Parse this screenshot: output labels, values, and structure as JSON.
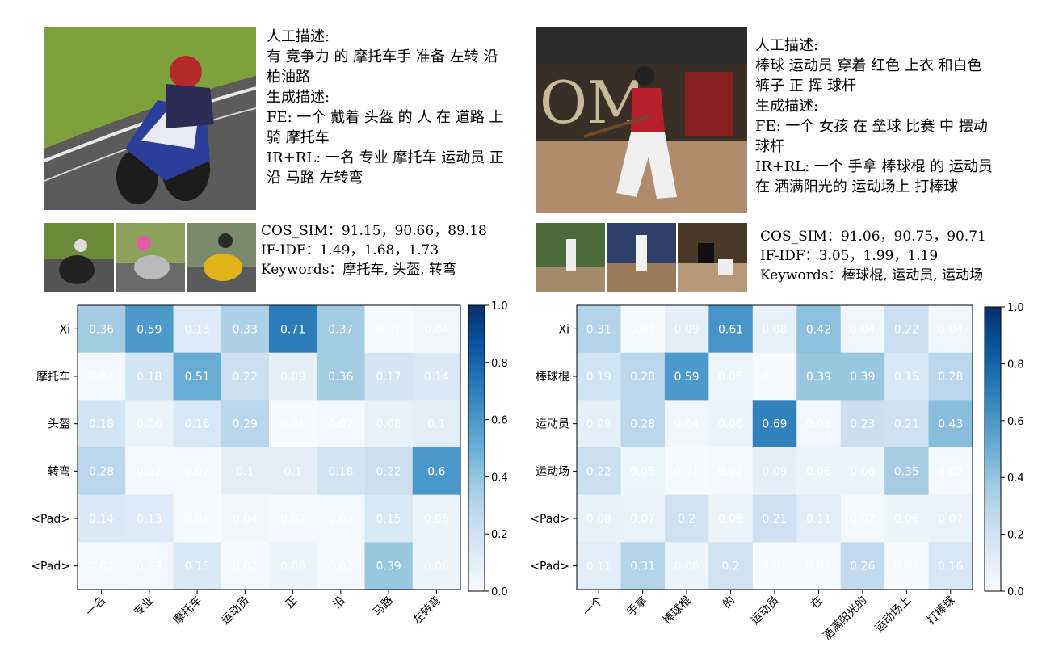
{
  "panels": [
    {
      "manual_label": "人工描述:",
      "manual_lines": [
        "有 竞争力 的 摩托车手 准备 左转 沿",
        "柏油路"
      ],
      "generated_label": "生成描述:",
      "generated_lines": [
        "FE: 一个 戴着 头盔 的 人 在 道路 上",
        "骑 摩托车",
        "IR+RL: 一名 专业 摩托车 运动员 正",
        "沿 马路 左转弯"
      ],
      "cos_sim": "COS_SIM：91.15，90.66，89.18",
      "if_idf": "IF-IDF：1.49，1.68，1.73",
      "keywords": "Keywords：摩托车, 头盔, 转弯"
    },
    {
      "manual_label": "人工描述:",
      "manual_lines": [
        "棒球 运动员 穿着 红色 上衣 和白色",
        "裤子 正 挥 球杆"
      ],
      "generated_label": "生成描述:",
      "generated_lines": [
        "FE: 一个 女孩 在 垒球 比赛 中 摆动",
        "球杆",
        "IR+RL: 一个 手拿 棒球棍 的 运动员",
        "在 洒满阳光的 运动场上 打棒球"
      ],
      "cos_sim": "COS_SIM：91.06，90.75，90.71",
      "if_idf": "IF-IDF：3.05，1.99，1.19",
      "keywords": "Keywords：棒球棍, 运动员, 运动场"
    }
  ],
  "chart_data": [
    {
      "type": "heatmap",
      "x_labels": [
        "一名",
        "专业",
        "摩托车",
        "运动员",
        "正",
        "沿",
        "马路",
        "左转弯"
      ],
      "y_labels": [
        "Xi",
        "摩托车",
        "头盔",
        "转弯",
        "<Pad>",
        "<Pad>"
      ],
      "values": [
        [
          0.36,
          0.59,
          0.13,
          0.33,
          0.71,
          0.37,
          0.01,
          0.04
        ],
        [
          0.02,
          0.18,
          0.51,
          0.22,
          0.09,
          0.36,
          0.17,
          0.14
        ],
        [
          0.18,
          0.06,
          0.16,
          0.29,
          0.01,
          0.02,
          0.08,
          0.1
        ],
        [
          0.28,
          0.02,
          0.02,
          0.1,
          0.1,
          0.18,
          0.22,
          0.6
        ],
        [
          0.14,
          0.13,
          0.01,
          0.04,
          0.02,
          0.02,
          0.15,
          0.06
        ],
        [
          0.02,
          0.03,
          0.15,
          0.02,
          0.06,
          0.02,
          0.39,
          0.06
        ]
      ],
      "colorbar_ticks": [
        "0.0",
        "0.2",
        "0.4",
        "0.6",
        "0.8",
        "1.0"
      ],
      "vmin": 0,
      "vmax": 1,
      "colormap": "Blues"
    },
    {
      "type": "heatmap",
      "x_labels": [
        "一个",
        "手拿",
        "棒球棍",
        "的",
        "运动员",
        "在",
        "洒满阳光的",
        "运动场上",
        "打棒球"
      ],
      "y_labels": [
        "Xi",
        "棒球棍",
        "运动员",
        "运动场",
        "<Pad>",
        "<Pad>"
      ],
      "values": [
        [
          0.31,
          0.01,
          0.09,
          0.61,
          0.08,
          0.42,
          0.04,
          0.22,
          0.04
        ],
        [
          0.19,
          0.28,
          0.59,
          0.05,
          0.01,
          0.39,
          0.39,
          0.15,
          0.28
        ],
        [
          0.09,
          0.28,
          0.04,
          0.06,
          0.69,
          0.03,
          0.23,
          0.21,
          0.43
        ],
        [
          0.22,
          0.05,
          0.01,
          0.02,
          0.09,
          0.06,
          0.06,
          0.35,
          0.02
        ],
        [
          0.08,
          0.07,
          0.2,
          0.06,
          0.21,
          0.11,
          0.02,
          0.06,
          0.07
        ],
        [
          0.11,
          0.31,
          0.06,
          0.2,
          0.01,
          0.01,
          0.26,
          0.01,
          0.16
        ]
      ],
      "colorbar_ticks": [
        "0.0",
        "0.2",
        "0.4",
        "0.6",
        "0.8",
        "1.0"
      ],
      "vmin": 0,
      "vmax": 1,
      "colormap": "Blues"
    }
  ]
}
